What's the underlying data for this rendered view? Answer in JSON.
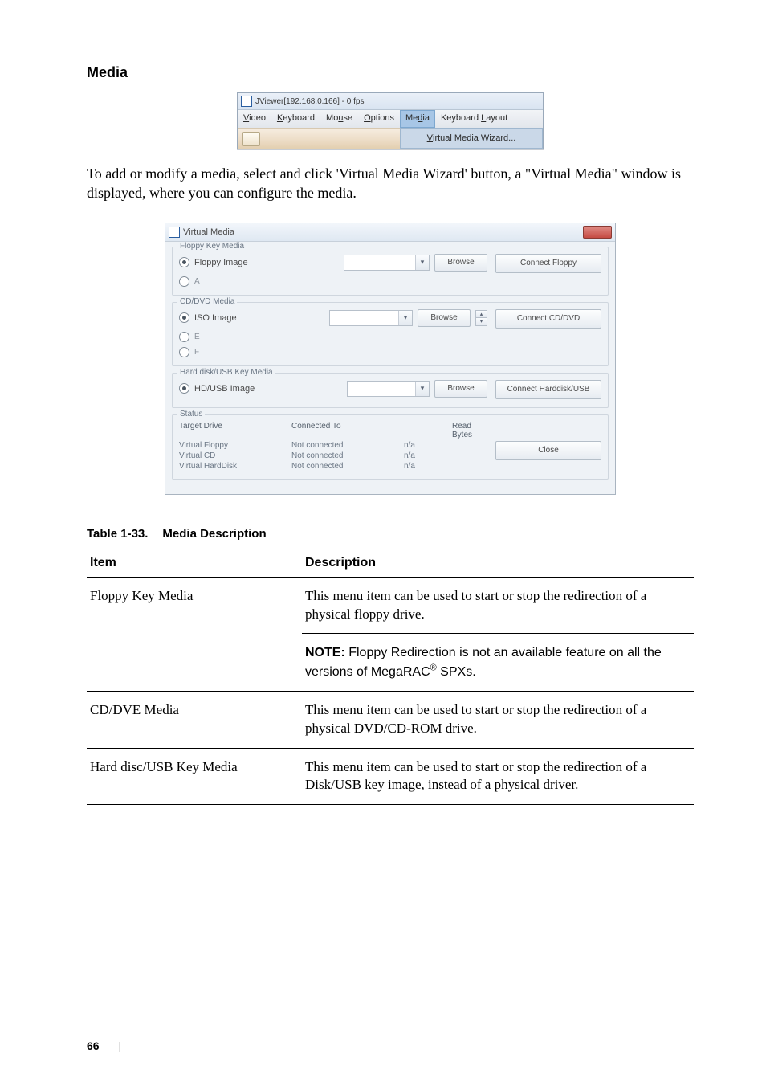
{
  "heading": "Media",
  "menubar": {
    "title": "JViewer[192.168.0.166] - 0 fps",
    "items": [
      "Video",
      "Keyboard",
      "Mouse",
      "Options",
      "Media",
      "Keyboard Layout"
    ],
    "underline_index": [
      0,
      0,
      2,
      0,
      2,
      9
    ],
    "selected_index": 4,
    "submenu": "Virtual Media Wizard...",
    "submenu_underline_index": 0
  },
  "body_paragraph": "To  add or modify  a media, select and click 'Virtual Media Wizard' button, a \"Virtual Media\" window is displayed, where you can configure the media.",
  "dialog": {
    "title": "Virtual Media",
    "groups": {
      "floppy": {
        "label": "Floppy Key Media",
        "radio_image": "Floppy Image",
        "drive_a": "A",
        "browse": "Browse",
        "connect": "Connect Floppy"
      },
      "cd": {
        "label": "CD/DVD Media",
        "radio_image": "ISO Image",
        "drive_e": "E",
        "drive_f": "F",
        "browse": "Browse",
        "connect": "Connect CD/DVD"
      },
      "hd": {
        "label": "Hard disk/USB Key Media",
        "radio_image": "HD/USB Image",
        "browse": "Browse",
        "connect": "Connect Harddisk/USB"
      },
      "status": {
        "label": "Status",
        "headers": [
          "Target Drive",
          "Connected To",
          "",
          "Read Bytes"
        ],
        "rows": [
          [
            "Virtual Floppy",
            "Not connected",
            "n/a",
            ""
          ],
          [
            "Virtual CD",
            "Not connected",
            "n/a",
            ""
          ],
          [
            "Virtual HardDisk",
            "Not connected",
            "n/a",
            ""
          ]
        ],
        "close": "Close"
      }
    }
  },
  "table": {
    "caption_label": "Table 1-33.",
    "caption_title": "Media Description",
    "headers": [
      "Item",
      "Description"
    ],
    "rows": [
      {
        "item": "Floppy Key Media",
        "desc": "This menu item can be used to start or stop the redirection of a physical floppy drive.",
        "note_bold": "NOTE:",
        "note_text_1": " Floppy Redirection is not an available feature on all the versions of MegaRAC",
        "note_sup": "®",
        "note_text_2": " SPXs."
      },
      {
        "item": "CD/DVE Media",
        "desc": "This menu item can be used to start or stop the redirection of a physical DVD/CD-ROM drive."
      },
      {
        "item": "Hard disc/USB Key Media",
        "desc": "This menu item can be used to start or stop the redirection of a Disk/USB key image, instead of a physical driver."
      }
    ]
  },
  "footer": {
    "page": "66",
    "bar": "|"
  },
  "colors": {
    "page_bg": "#ffffff",
    "text": "#000000",
    "menubar_sel_bg": "#a7c6e6",
    "dialog_bg": "#eef2f6",
    "group_border": "#cfd6de",
    "muted_text": "#6b7785",
    "button_grad_top": "#fdfefe",
    "button_grad_bot": "#e6ebf1",
    "close_red_top": "#e08b85",
    "close_red_bot": "#c54b43"
  }
}
